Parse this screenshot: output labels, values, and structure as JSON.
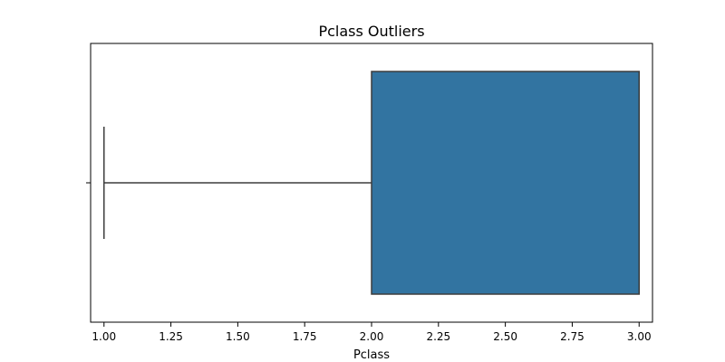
{
  "chart_data": {
    "type": "boxplot",
    "title": "Pclass Outliers",
    "xlabel": "Pclass",
    "ylabel": "",
    "xlim": [
      0.95,
      3.05
    ],
    "x_ticks": [
      1.0,
      1.25,
      1.5,
      1.75,
      2.0,
      2.25,
      2.5,
      2.75,
      3.0
    ],
    "x_tick_labels": [
      "1.00",
      "1.25",
      "1.50",
      "1.75",
      "2.00",
      "2.25",
      "2.50",
      "2.75",
      "3.00"
    ],
    "box": {
      "whisker_low": 1.0,
      "q1": 2.0,
      "median": 3.0,
      "q3": 3.0,
      "whisker_high": 3.0
    },
    "colors": {
      "box_fill": "#3274a1",
      "line": "#3d3d3d",
      "axis": "#000000"
    }
  }
}
